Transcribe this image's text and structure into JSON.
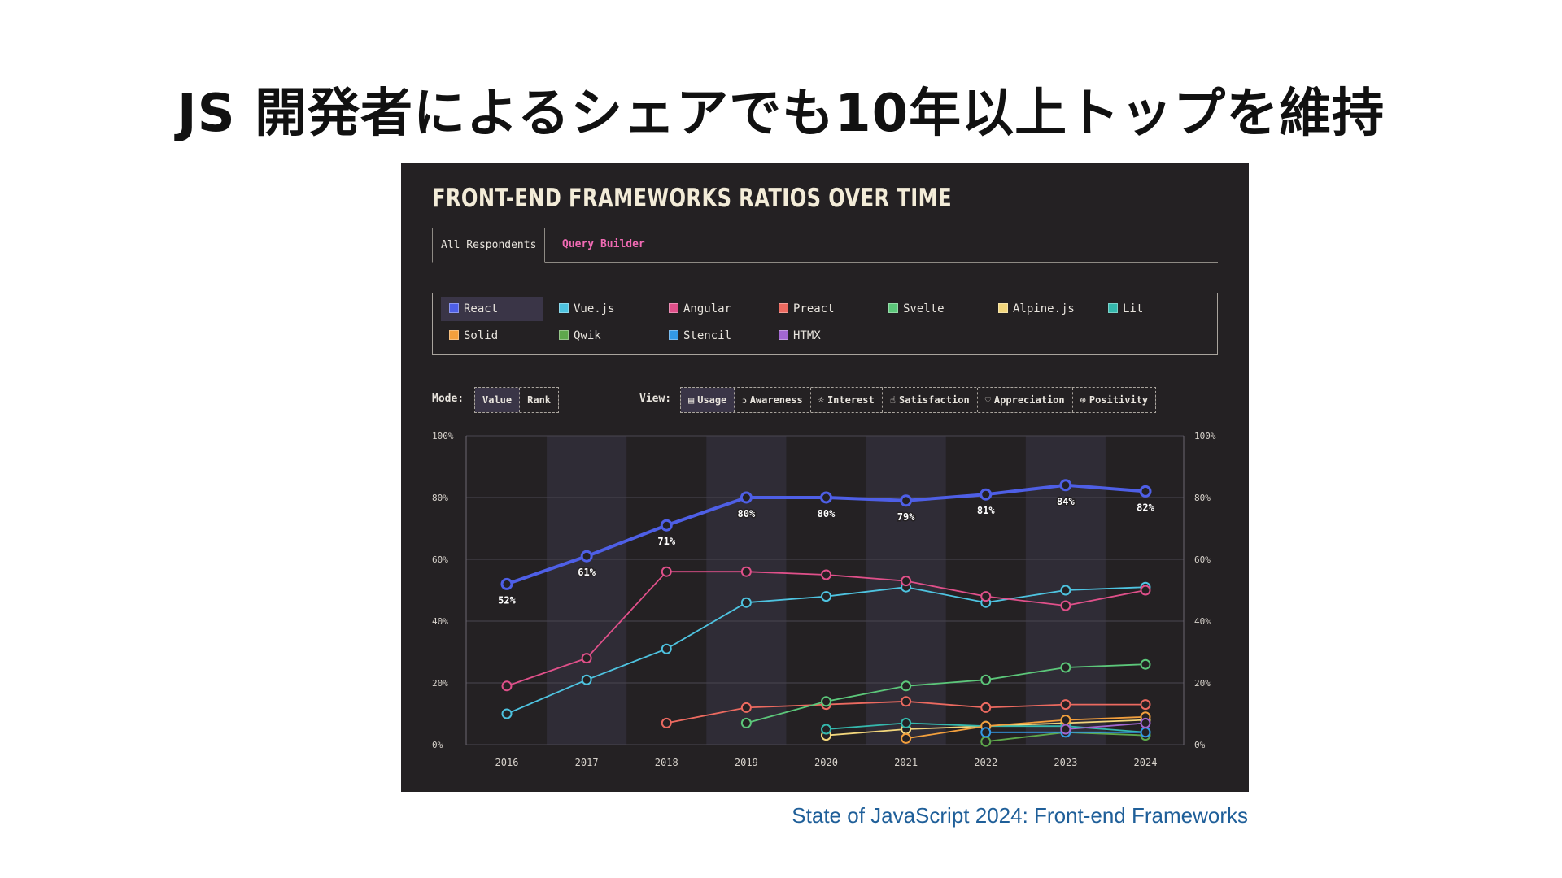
{
  "slide": {
    "title": "JS 開発者によるシェアでも10年以上トップを維持",
    "source": "State of JavaScript 2024: Front-end Frameworks"
  },
  "panel": {
    "title": "FRONT-END FRAMEWORKS RATIOS OVER TIME",
    "tabs": [
      {
        "label": "All Respondents",
        "active": true
      },
      {
        "label": "Query Builder",
        "active": false
      }
    ],
    "mode_label": "Mode:",
    "mode_options": [
      {
        "label": "Value",
        "active": true
      },
      {
        "label": "Rank",
        "active": false
      }
    ],
    "view_label": "View:",
    "view_options": [
      {
        "label": "Usage",
        "icon": "document-icon",
        "active": true
      },
      {
        "label": "Awareness",
        "icon": "ear-icon",
        "active": false
      },
      {
        "label": "Interest",
        "icon": "lightbulb-icon",
        "active": false
      },
      {
        "label": "Satisfaction",
        "icon": "thumbs-up-icon",
        "active": false
      },
      {
        "label": "Appreciation",
        "icon": "heart-icon",
        "active": false
      },
      {
        "label": "Positivity",
        "icon": "plus-circle-icon",
        "active": false
      }
    ]
  },
  "chart_data": {
    "type": "line",
    "x": [
      2016,
      2017,
      2018,
      2019,
      2020,
      2021,
      2022,
      2023,
      2024
    ],
    "ylim": [
      0,
      100
    ],
    "yticks": [
      "0%",
      "20%",
      "40%",
      "60%",
      "80%",
      "100%"
    ],
    "grid": true,
    "highlight": "React",
    "series": [
      {
        "name": "React",
        "color": "#4e5fe6",
        "values": [
          52,
          61,
          71,
          80,
          80,
          79,
          81,
          84,
          82
        ],
        "labels": [
          "52%",
          "61%",
          "71%",
          "80%",
          "80%",
          "79%",
          "81%",
          "84%",
          "82%"
        ]
      },
      {
        "name": "Vue.js",
        "color": "#4ec3e0",
        "values": [
          10,
          21,
          31,
          46,
          48,
          51,
          46,
          50,
          51
        ]
      },
      {
        "name": "Angular",
        "color": "#e0508a",
        "values": [
          19,
          28,
          56,
          56,
          55,
          53,
          48,
          45,
          50
        ]
      },
      {
        "name": "Preact",
        "color": "#ec6a60",
        "values": [
          null,
          null,
          7,
          12,
          13,
          14,
          12,
          13,
          13
        ]
      },
      {
        "name": "Svelte",
        "color": "#5cc77a",
        "values": [
          null,
          null,
          null,
          7,
          14,
          19,
          21,
          25,
          26
        ]
      },
      {
        "name": "Alpine.js",
        "color": "#f2d67c",
        "values": [
          null,
          null,
          null,
          null,
          3,
          5,
          6,
          7,
          8
        ]
      },
      {
        "name": "Lit",
        "color": "#35b8ad",
        "values": [
          null,
          null,
          null,
          null,
          5,
          7,
          6,
          6,
          4
        ]
      },
      {
        "name": "Solid",
        "color": "#f29f3d",
        "values": [
          null,
          null,
          null,
          null,
          null,
          2,
          6,
          8,
          9
        ]
      },
      {
        "name": "Qwik",
        "color": "#5ea84c",
        "values": [
          null,
          null,
          null,
          null,
          null,
          null,
          1,
          4,
          3
        ]
      },
      {
        "name": "Stencil",
        "color": "#3399e6",
        "values": [
          null,
          null,
          null,
          null,
          null,
          null,
          4,
          4,
          4
        ]
      },
      {
        "name": "HTMX",
        "color": "#a267d1",
        "values": [
          null,
          null,
          null,
          null,
          null,
          null,
          null,
          5,
          7
        ]
      }
    ]
  }
}
